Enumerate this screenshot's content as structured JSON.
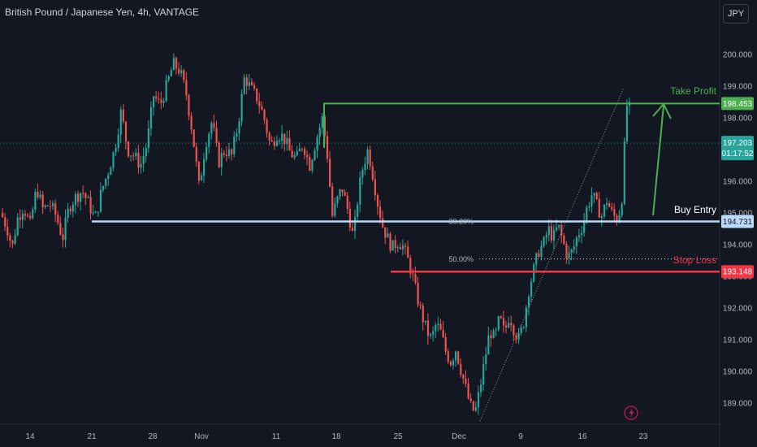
{
  "header": {
    "title": "British Pound / Japanese Yen, 4h, VANTAGE",
    "currency_button": "JPY"
  },
  "colors": {
    "background": "#131722",
    "up": "#26a69a",
    "down": "#ef5350",
    "take_profit": "#4caf50",
    "buy_entry": "#bbd9fb",
    "stop_loss": "#f23645",
    "current_price": "#26a69a"
  },
  "icons": {
    "replay": "lightning-icon"
  },
  "chart_data": {
    "type": "candlestick",
    "y_ticks": [
      "200.000",
      "199.000",
      "198.000",
      "197.000",
      "196.000",
      "195.000",
      "194.000",
      "193.000",
      "192.000",
      "191.000",
      "190.000",
      "189.000"
    ],
    "y_tick_values": [
      200,
      199,
      198,
      197,
      196,
      195,
      194,
      193,
      192,
      191,
      190,
      189
    ],
    "x_ticks": [
      "14",
      "21",
      "28",
      "Nov",
      "11",
      "18",
      "25",
      "Dec",
      "9",
      "16",
      "23"
    ],
    "grid": false,
    "ylim": [
      188.1,
      200.8
    ],
    "levels": {
      "take_profit": {
        "label": "Take Profit",
        "value": 198.453,
        "value_label": "198.453"
      },
      "buy_entry": {
        "label": "Buy Entry",
        "value": 194.731,
        "value_label": "194.731"
      },
      "stop_loss": {
        "label": "Stop Loss",
        "value": 193.148,
        "value_label": "193.148"
      },
      "fib_382": {
        "label": "38.20%",
        "value": 194.75
      },
      "fib_50": {
        "label": "50.00%",
        "value": 193.55
      },
      "current": {
        "value": 197.203,
        "value_label": "197.203",
        "countdown": "01:17:52"
      }
    },
    "price_path": [
      [
        0,
        195.0
      ],
      [
        8,
        194.5
      ],
      [
        14,
        193.9
      ],
      [
        20,
        194.8
      ],
      [
        28,
        195.2
      ],
      [
        36,
        194.6
      ],
      [
        44,
        195.8
      ],
      [
        52,
        195.1
      ],
      [
        60,
        195.3
      ],
      [
        68,
        194.9
      ],
      [
        76,
        194.2
      ],
      [
        84,
        195.2
      ],
      [
        92,
        195.5
      ],
      [
        100,
        195.7
      ],
      [
        108,
        195.3
      ],
      [
        116,
        194.8
      ],
      [
        124,
        195.7
      ],
      [
        132,
        196.3
      ],
      [
        140,
        197.0
      ],
      [
        148,
        198.2
      ],
      [
        156,
        197.0
      ],
      [
        164,
        196.8
      ],
      [
        172,
        196.5
      ],
      [
        180,
        197.2
      ],
      [
        188,
        198.7
      ],
      [
        196,
        198.4
      ],
      [
        204,
        199.0
      ],
      [
        212,
        199.7
      ],
      [
        220,
        199.5
      ],
      [
        228,
        198.8
      ],
      [
        236,
        197.5
      ],
      [
        244,
        195.8
      ],
      [
        252,
        197.2
      ],
      [
        260,
        197.9
      ],
      [
        268,
        196.6
      ],
      [
        276,
        197.0
      ],
      [
        284,
        196.8
      ],
      [
        292,
        197.8
      ],
      [
        300,
        199.3
      ],
      [
        308,
        198.9
      ],
      [
        316,
        198.6
      ],
      [
        324,
        198.0
      ],
      [
        332,
        197.1
      ],
      [
        340,
        197.5
      ],
      [
        348,
        197.4
      ],
      [
        356,
        196.9
      ],
      [
        364,
        196.7
      ],
      [
        372,
        197.2
      ],
      [
        380,
        196.5
      ],
      [
        388,
        197.3
      ],
      [
        396,
        198.0
      ],
      [
        402,
        196.8
      ],
      [
        408,
        194.9
      ],
      [
        414,
        195.4
      ],
      [
        420,
        195.8
      ],
      [
        428,
        195.0
      ],
      [
        434,
        194.2
      ],
      [
        440,
        195.6
      ],
      [
        446,
        196.5
      ],
      [
        452,
        197.0
      ],
      [
        458,
        196.2
      ],
      [
        464,
        195.3
      ],
      [
        470,
        194.6
      ],
      [
        476,
        194.2
      ],
      [
        482,
        193.9
      ],
      [
        488,
        194.1
      ],
      [
        494,
        194.0
      ],
      [
        500,
        193.6
      ],
      [
        506,
        193.1
      ],
      [
        512,
        192.4
      ],
      [
        518,
        191.8
      ],
      [
        524,
        191.3
      ],
      [
        530,
        191.0
      ],
      [
        536,
        191.5
      ],
      [
        542,
        191.2
      ],
      [
        548,
        190.6
      ],
      [
        554,
        190.3
      ],
      [
        560,
        190.7
      ],
      [
        566,
        190.1
      ],
      [
        572,
        189.5
      ],
      [
        578,
        188.9
      ],
      [
        584,
        188.7
      ],
      [
        590,
        189.5
      ],
      [
        596,
        190.4
      ],
      [
        602,
        191.3
      ],
      [
        608,
        191.0
      ],
      [
        614,
        191.7
      ],
      [
        620,
        191.2
      ],
      [
        626,
        191.8
      ],
      [
        632,
        191.3
      ],
      [
        638,
        191.0
      ],
      [
        644,
        191.6
      ],
      [
        650,
        192.6
      ],
      [
        656,
        193.2
      ],
      [
        662,
        193.8
      ],
      [
        668,
        194.0
      ],
      [
        674,
        194.5
      ],
      [
        680,
        194.2
      ],
      [
        686,
        194.6
      ],
      [
        692,
        194.1
      ],
      [
        698,
        193.6
      ],
      [
        704,
        193.8
      ],
      [
        710,
        194.3
      ],
      [
        716,
        194.6
      ],
      [
        722,
        195.2
      ],
      [
        728,
        195.6
      ],
      [
        734,
        195.2
      ],
      [
        740,
        194.9
      ],
      [
        746,
        195.4
      ],
      [
        752,
        195.0
      ],
      [
        758,
        194.8
      ],
      [
        764,
        195.2
      ],
      [
        768,
        197.2
      ],
      [
        772,
        198.9
      ],
      [
        776,
        197.6
      ],
      [
        782,
        197.2
      ]
    ]
  }
}
